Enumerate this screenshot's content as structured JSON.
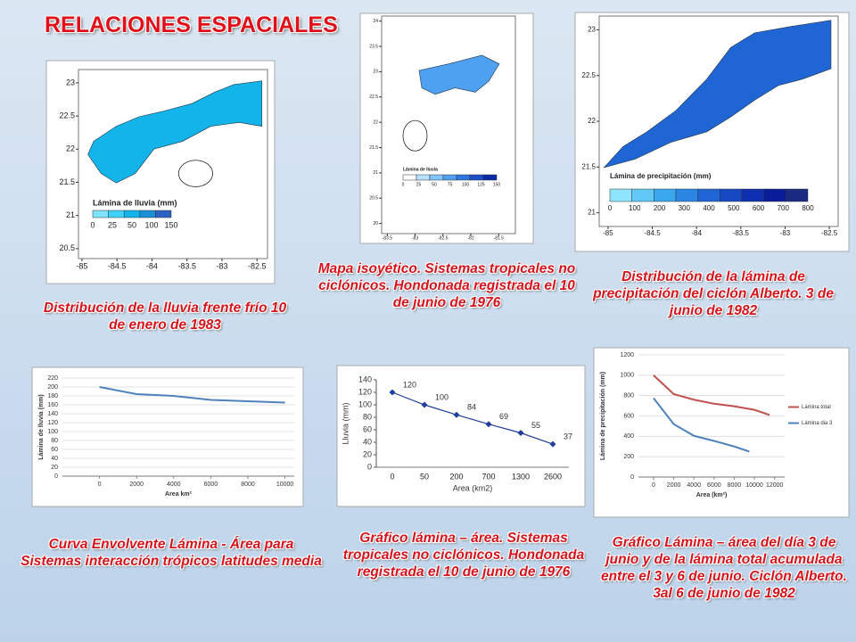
{
  "title": "RELACIONES ESPACIALES",
  "captions": [
    "Distribución de la lluvia frente frío 10 de enero de 1983",
    "Mapa isoyético. Sistemas tropicales no ciclónicos. Hondonada registrada el 10 de junio de 1976",
    "Distribución de la lámina de precipitación del ciclón Alberto. 3 de junio de 1982",
    "Curva Envolvente Lámina - Área para Sistemas interacción trópicos latitudes media",
    "Gráfico lámina – área. Sistemas tropicales no ciclónicos. Hondonada registrada el 10 de junio de 1976",
    "Gráfico Lámina – área del día 3 de junio y de la lámina total acumulada entre el 3 y 6 de junio. Ciclón Alberto. 3al 6 de junio de 1982"
  ],
  "maps": [
    {
      "legend_title": "Lámina de lluvia (mm)",
      "legend_labels": [
        0,
        25,
        50,
        100,
        150
      ],
      "xlim": [
        -85.05,
        -82.35
      ],
      "xticks": [
        -85,
        -84.5,
        -84,
        -83.5,
        -83,
        -82.5
      ],
      "ylim": [
        20.35,
        23.2
      ],
      "yticks": [
        20.5,
        21,
        21.5,
        22,
        22.5,
        23
      ]
    },
    {
      "legend_title": "Lámina de lluvia",
      "legend_labels": [
        0,
        25,
        50,
        75,
        100,
        125,
        150
      ],
      "xlim": [
        -83.6,
        -81.2
      ],
      "xticks": [
        -83.5,
        -83,
        -82.5,
        -82,
        -81.5
      ],
      "ylim": [
        19.8,
        24.1
      ],
      "yticks": [
        20,
        20.5,
        21,
        21.5,
        22,
        22.5,
        23,
        23.5,
        24
      ]
    },
    {
      "legend_title": "Lámina de precipitación (mm)",
      "legend_labels": [
        0,
        100,
        200,
        300,
        400,
        500,
        600,
        700,
        800
      ],
      "xlim": [
        -85.1,
        -82.4
      ],
      "xticks": [
        -85,
        -84.5,
        -84,
        -83.5,
        -83,
        -82.5
      ],
      "ylim": [
        20.85,
        23.15
      ],
      "yticks": [
        21,
        21.5,
        22,
        22.5,
        23
      ]
    }
  ],
  "chart_data": [
    {
      "type": "line",
      "y_label": "Lámina de lluvia (mm)",
      "x_label": "Area km²",
      "x": [
        0,
        2000,
        4000,
        6000,
        8000,
        10000
      ],
      "series": [
        {
          "color": "#4f81bd",
          "values": [
            200,
            184,
            180,
            171,
            168,
            165
          ]
        }
      ],
      "xlim": [
        -2000,
        10500
      ],
      "xticks": [
        0,
        2000,
        4000,
        6000,
        8000,
        10000
      ],
      "ylim": [
        0,
        220
      ],
      "yticks": [
        0,
        20,
        40,
        60,
        80,
        100,
        120,
        140,
        160,
        180,
        200,
        220
      ],
      "grid": true
    },
    {
      "type": "line",
      "y_label": "Lluvia (mm)",
      "x_label": "Area (km2)",
      "categories": [
        "0",
        "50",
        "200",
        "700",
        "1300",
        "2600"
      ],
      "series": [
        {
          "color": "#1f3d99",
          "values": [
            120,
            100,
            84,
            69,
            55,
            37
          ]
        }
      ],
      "ylim": [
        0,
        140
      ],
      "yticks": [
        0,
        20,
        40,
        60,
        80,
        100,
        120,
        140
      ],
      "grid": false,
      "data_labels": true
    },
    {
      "type": "line",
      "y_label": "Lámina de precipitación (mm)",
      "x_label": "Area (km²)",
      "series": [
        {
          "name": "Lámina total",
          "color": "#c0504d",
          "x": [
            0,
            2000,
            4000,
            6000,
            8000,
            10000,
            11500
          ],
          "values": [
            1000,
            815,
            760,
            720,
            695,
            660,
            610
          ]
        },
        {
          "name": "Lámina dia 3",
          "color": "#4f81bd",
          "x": [
            0,
            2000,
            4000,
            6000,
            8000,
            9500
          ],
          "values": [
            775,
            520,
            405,
            355,
            300,
            250
          ]
        }
      ],
      "xlim": [
        -1500,
        13000
      ],
      "xticks": [
        0,
        2000,
        4000,
        6000,
        8000,
        10000,
        12000
      ],
      "ylim": [
        0,
        1200
      ],
      "yticks": [
        0,
        200,
        400,
        600,
        800,
        1000,
        1200
      ],
      "grid": true,
      "legend": "right"
    }
  ]
}
